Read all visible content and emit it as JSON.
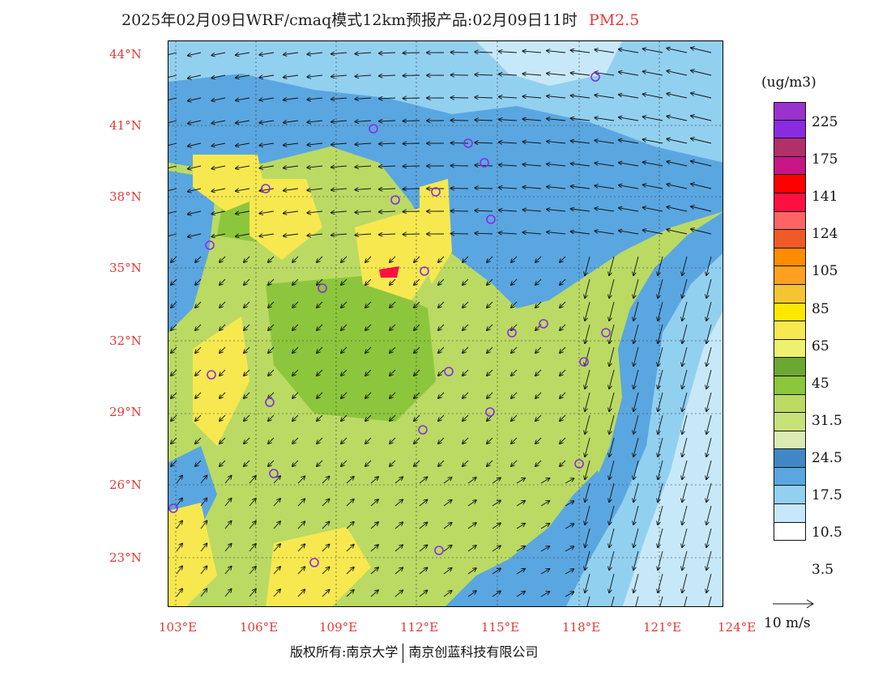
{
  "title": {
    "main": "2025年02月09日WRF/cmaq模式12km预报产品:02月09日11时",
    "variable": "PM2.5"
  },
  "lat_labels": [
    "44°N",
    "41°N",
    "38°N",
    "35°N",
    "32°N",
    "29°N",
    "26°N",
    "23°N"
  ],
  "lon_labels": [
    "103°E",
    "106°E",
    "109°E",
    "112°E",
    "115°E",
    "118°E",
    "121°E",
    "124°E"
  ],
  "legend": {
    "units": "(ug/m3)",
    "colors": [
      "#9a32cd",
      "#8a2be2",
      "#b0306a",
      "#c71585",
      "#ff0000",
      "#ff1040",
      "#ff6464",
      "#f05a28",
      "#ff8c00",
      "#ffa020",
      "#f5c531",
      "#ffe800",
      "#f7e850",
      "#f0f070",
      "#6aa832",
      "#8cc63c",
      "#bada64",
      "#c8e27a",
      "#dcebb4",
      "#3f88c5",
      "#5aa6e0",
      "#92d0f0",
      "#c7e8f8",
      "#ffffff"
    ],
    "labels": [
      "225",
      "175",
      "141",
      "124",
      "105",
      "85",
      "65",
      "45",
      "31.5",
      "24.5",
      "17.5",
      "10.5",
      "3.5"
    ]
  },
  "wind_reference": "10 m/s",
  "footer": {
    "left": "版权所有:南京大学",
    "right": "南京创蓝科技有限公司"
  }
}
